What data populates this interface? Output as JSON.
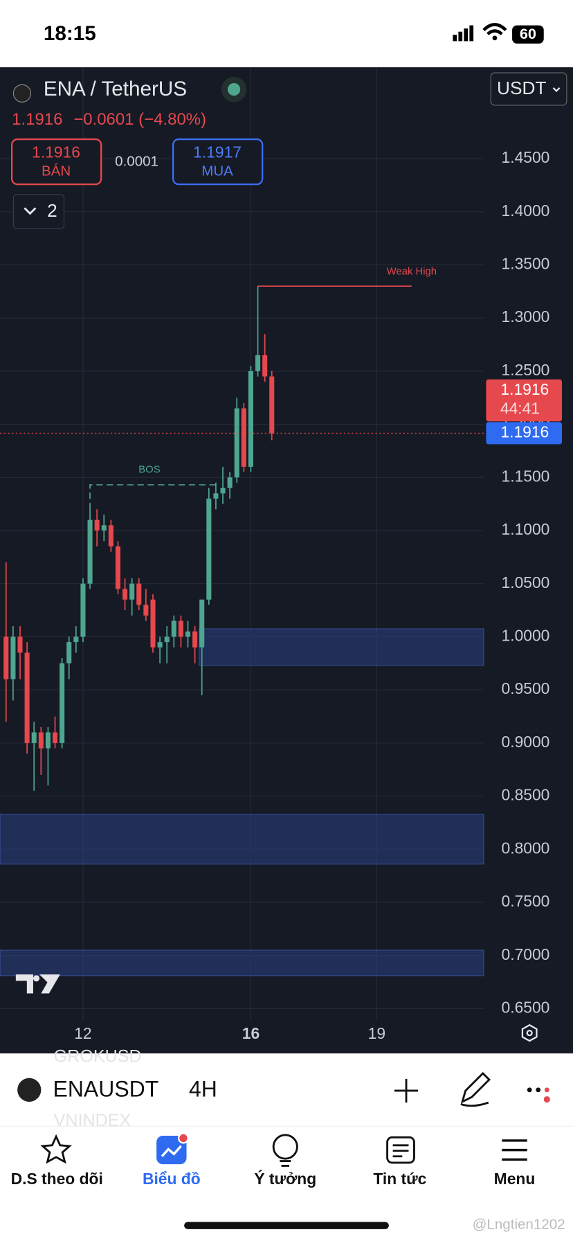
{
  "status": {
    "time": "18:15",
    "battery": "60"
  },
  "header": {
    "symbol": "ENA / TetherUS",
    "currency": "USDT",
    "price": "1.1916",
    "change": "−0.0601 (−4.80%)"
  },
  "trade": {
    "sell_price": "1.1916",
    "sell_label": "BÁN",
    "spread": "0.0001",
    "buy_price": "1.1917",
    "buy_label": "MUA",
    "indicators": "2"
  },
  "chart_data": {
    "type": "candlestick",
    "open": [
      1.0,
      0.96,
      1.0,
      0.985,
      0.9,
      0.91,
      0.895,
      0.91,
      0.9,
      0.975,
      0.995,
      1.0,
      1.05,
      1.11,
      1.1,
      1.105,
      1.085,
      1.045,
      1.035,
      1.05,
      1.03,
      1.035,
      0.99,
      0.995,
      1.0,
      1.015,
      1.0,
      1.005,
      0.99,
      1.035,
      1.13,
      1.135,
      1.14,
      1.15,
      1.215,
      1.16,
      1.25,
      1.265,
      1.245
    ],
    "high": [
      1.07,
      1.01,
      1.01,
      0.995,
      0.92,
      0.915,
      0.915,
      0.925,
      0.98,
      1.0,
      1.01,
      1.055,
      1.12,
      1.12,
      1.115,
      1.11,
      1.09,
      1.055,
      1.055,
      1.055,
      1.045,
      1.04,
      1.0,
      1.01,
      1.02,
      1.02,
      1.015,
      1.01,
      1.035,
      1.14,
      1.145,
      1.16,
      1.155,
      1.225,
      1.22,
      1.255,
      1.33,
      1.285,
      1.25
    ],
    "low": [
      0.92,
      0.94,
      0.96,
      0.89,
      0.855,
      0.87,
      0.86,
      0.895,
      0.895,
      0.96,
      0.985,
      0.995,
      1.045,
      1.085,
      1.09,
      1.08,
      1.04,
      1.025,
      1.02,
      1.025,
      1.015,
      0.985,
      0.975,
      0.975,
      0.99,
      0.99,
      0.99,
      0.975,
      0.945,
      1.03,
      1.12,
      1.125,
      1.13,
      1.145,
      1.155,
      1.155,
      1.245,
      1.24,
      1.185
    ],
    "close": [
      0.96,
      1.0,
      0.985,
      0.9,
      0.91,
      0.895,
      0.91,
      0.9,
      0.975,
      0.995,
      1.0,
      1.05,
      1.11,
      1.1,
      1.105,
      1.085,
      1.045,
      1.035,
      1.05,
      1.03,
      1.02,
      0.99,
      0.995,
      1.0,
      1.015,
      1.0,
      1.005,
      0.99,
      1.035,
      1.13,
      1.135,
      1.14,
      1.15,
      1.215,
      1.16,
      1.25,
      1.265,
      1.245,
      1.1916
    ],
    "up_color": "#4fa68f",
    "down_color": "#e5484d",
    "ylim": [
      0.639,
      1.536
    ],
    "yticks": [
      {
        "value": 0.65,
        "label": "0.6500"
      },
      {
        "value": 0.7,
        "label": "0.7000"
      },
      {
        "value": 0.75,
        "label": "0.7500"
      },
      {
        "value": 0.8,
        "label": "0.8000"
      },
      {
        "value": 0.85,
        "label": "0.8500"
      },
      {
        "value": 0.9,
        "label": "0.9000"
      },
      {
        "value": 0.95,
        "label": "0.9500"
      },
      {
        "value": 1,
        "label": "1.0000"
      },
      {
        "value": 1.05,
        "label": "1.0500"
      },
      {
        "value": 1.1,
        "label": "1.1000"
      },
      {
        "value": 1.15,
        "label": "1.1500"
      },
      {
        "value": 1.2,
        "label": "1.2000"
      },
      {
        "value": 1.25,
        "label": "1.2500"
      },
      {
        "value": 1.3,
        "label": "1.3000"
      },
      {
        "value": 1.35,
        "label": "1.3500"
      },
      {
        "value": 1.4,
        "label": "1.4000"
      },
      {
        "value": 1.45,
        "label": "1.4500"
      }
    ],
    "xlim": [
      -0.87,
      68.3
    ],
    "xticks": [
      {
        "value": 11,
        "label": "12"
      },
      {
        "value": 35,
        "label": "16"
      },
      {
        "value": 53,
        "label": "19"
      }
    ],
    "grid": true,
    "zones": [
      [
        0.973,
        1.0075
      ],
      [
        0.786,
        0.833
      ],
      [
        0.681,
        0.705
      ]
    ],
    "bos": {
      "label": "BOS",
      "value": 1.143
    },
    "weak_high": {
      "label": "Weak High",
      "value": 1.33
    },
    "last_price": {
      "value": 1.1916,
      "label": "1.1916",
      "countdown": "44:41",
      "bid_label": "1.1916"
    }
  },
  "symbol_bar": {
    "symbol": "ENAUSDT",
    "interval": "4H",
    "ghost_top": "GROKUSD",
    "ghost_bottom": "VNINDEX"
  },
  "nav": [
    "D.S theo dõi",
    "Biểu đồ",
    "Ý tưởng",
    "Tin tức",
    "Menu"
  ],
  "watermark": "@Lngtien1202"
}
